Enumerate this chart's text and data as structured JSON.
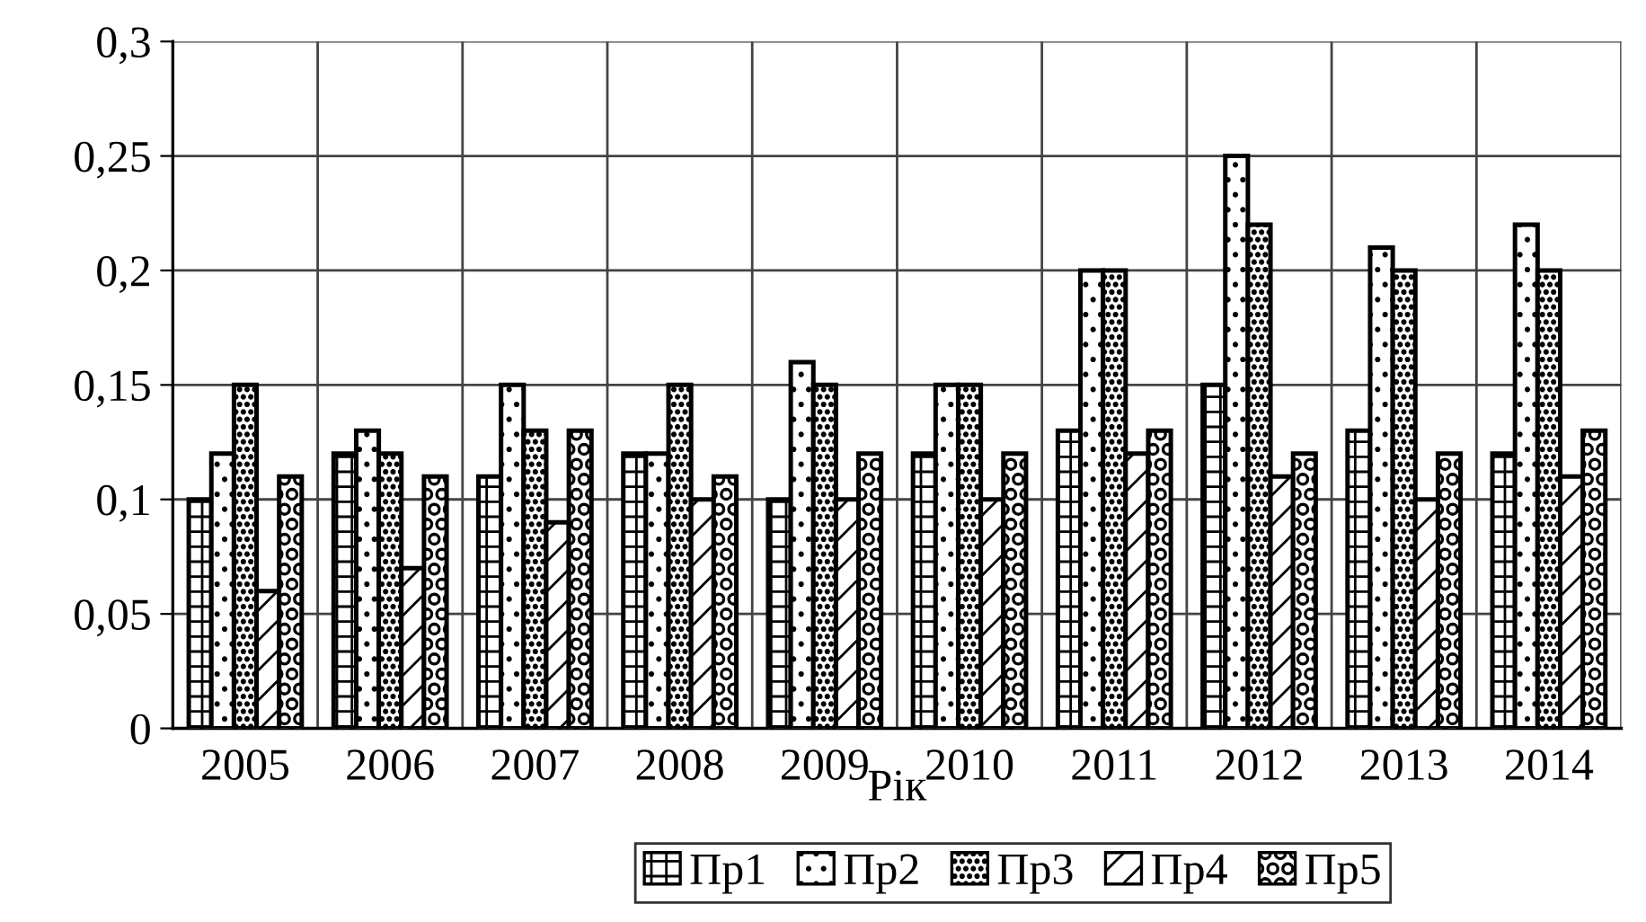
{
  "chart_data": {
    "type": "bar",
    "xlabel": "Рік",
    "categories": [
      "2005",
      "2006",
      "2007",
      "2008",
      "2009",
      "2010",
      "2011",
      "2012",
      "2013",
      "2014"
    ],
    "series": [
      {
        "name": "Пр1",
        "color": "#000000",
        "values": [
          0.1,
          0.12,
          0.11,
          0.12,
          0.1,
          0.12,
          0.13,
          0.15,
          0.13,
          0.12
        ]
      },
      {
        "name": "Пр2",
        "color": "#000000",
        "values": [
          0.12,
          0.13,
          0.15,
          0.12,
          0.16,
          0.15,
          0.2,
          0.25,
          0.21,
          0.22
        ]
      },
      {
        "name": "Пр3",
        "color": "#000000",
        "values": [
          0.15,
          0.12,
          0.13,
          0.15,
          0.15,
          0.15,
          0.2,
          0.22,
          0.2,
          0.2
        ]
      },
      {
        "name": "Пр4",
        "color": "#000000",
        "values": [
          0.06,
          0.07,
          0.09,
          0.1,
          0.1,
          0.1,
          0.12,
          0.11,
          0.1,
          0.11
        ]
      },
      {
        "name": "Пр5",
        "color": "#000000",
        "values": [
          0.11,
          0.11,
          0.13,
          0.11,
          0.12,
          0.12,
          0.13,
          0.12,
          0.12,
          0.13
        ]
      }
    ],
    "ylim": [
      0,
      0.3
    ],
    "yticks": [
      0,
      {
        "value": 0.05,
        "label": "0,05"
      },
      {
        "value": 0.1,
        "label": "0,1"
      },
      {
        "value": 0.15,
        "label": "0,15"
      },
      {
        "value": 0.2,
        "label": "0,2"
      },
      {
        "value": 0.25,
        "label": "0,25"
      },
      {
        "value": 0.3,
        "label": "0,3"
      }
    ],
    "grid": true,
    "legend": "bottom"
  }
}
